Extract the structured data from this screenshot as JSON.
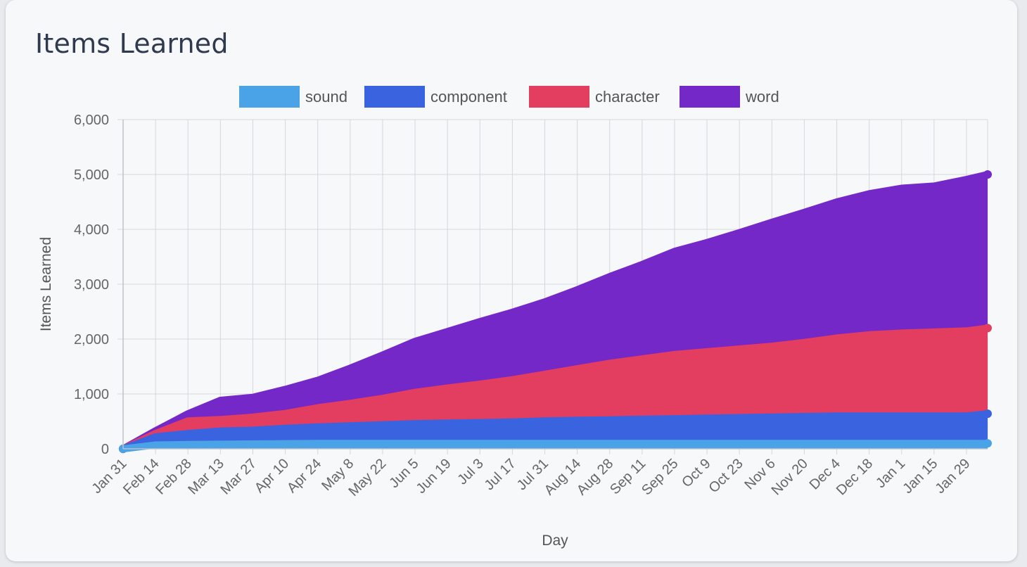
{
  "card": {
    "title": "Items Learned"
  },
  "chart_data": {
    "type": "area",
    "stacked": true,
    "xlabel": "Day",
    "ylabel": "Items Learned",
    "ylim": [
      0,
      6000
    ],
    "yticks": [
      0,
      1000,
      2000,
      3000,
      4000,
      5000,
      6000
    ],
    "xlim": [
      "Jan 31",
      "Feb 10"
    ],
    "xticks": [
      "Jan 31",
      "Feb 14",
      "Feb 28",
      "Mar 13",
      "Mar 27",
      "Apr 10",
      "Apr 24",
      "May 8",
      "May 22",
      "Jun 5",
      "Jun 19",
      "Jul 3",
      "Jul 17",
      "Jul 31",
      "Aug 14",
      "Aug 28",
      "Sep 11",
      "Sep 25",
      "Oct 9",
      "Oct 23",
      "Nov 6",
      "Nov 20",
      "Dec 4",
      "Dec 18",
      "Jan 1",
      "Jan 15",
      "Jan 29"
    ],
    "grid": true,
    "legend": "top",
    "x": [
      "Jan 31",
      "Feb 14",
      "Feb 28",
      "Mar 13",
      "Mar 27",
      "Apr 10",
      "Apr 24",
      "May 8",
      "May 22",
      "Jun 5",
      "Jun 19",
      "Jul 3",
      "Jul 17",
      "Jul 31",
      "Aug 14",
      "Aug 28",
      "Sep 11",
      "Sep 25",
      "Oct 9",
      "Oct 23",
      "Nov 6",
      "Nov 20",
      "Dec 4",
      "Dec 18",
      "Jan 1",
      "Jan 15",
      "Jan 29",
      "Feb 10"
    ],
    "series": [
      {
        "name": "sound",
        "color": "#4aa3e6",
        "values": [
          0,
          70,
          80,
          85,
          90,
          95,
          100,
          100,
          100,
          100,
          100,
          100,
          100,
          100,
          100,
          100,
          100,
          100,
          100,
          100,
          100,
          100,
          100,
          100,
          100,
          100,
          100,
          100
        ]
      },
      {
        "name": "component",
        "color": "#3a63e0",
        "values": [
          0,
          150,
          200,
          240,
          250,
          280,
          300,
          320,
          340,
          360,
          370,
          380,
          390,
          410,
          420,
          430,
          440,
          450,
          460,
          470,
          480,
          490,
          500,
          500,
          500,
          500,
          500,
          540
        ]
      },
      {
        "name": "character",
        "color": "#e33d5f",
        "values": [
          0,
          60,
          230,
          210,
          240,
          270,
          350,
          410,
          480,
          570,
          640,
          700,
          770,
          850,
          940,
          1030,
          1100,
          1170,
          1210,
          1250,
          1290,
          1350,
          1420,
          1480,
          1510,
          1530,
          1550,
          1560
        ]
      },
      {
        "name": "word",
        "color": "#7428c8",
        "values": [
          0,
          50,
          130,
          350,
          360,
          440,
          500,
          640,
          790,
          930,
          1030,
          1140,
          1230,
          1320,
          1440,
          1580,
          1720,
          1880,
          1990,
          2120,
          2260,
          2370,
          2480,
          2570,
          2640,
          2660,
          2760,
          2800
        ]
      }
    ]
  }
}
